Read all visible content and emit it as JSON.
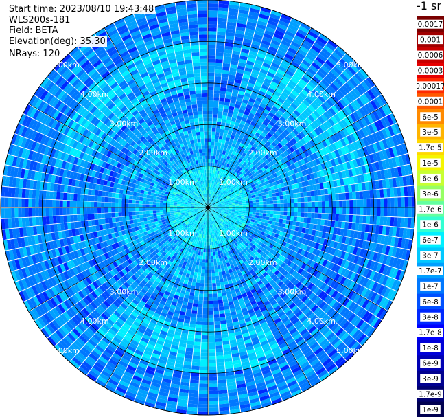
{
  "header": {
    "start_time": "Start time: 2023/08/10 19:43:48",
    "instrument": "WLS200s-181",
    "field": "Field: BETA",
    "elevation": "Elevation(deg): 35.30",
    "nrays": "NRays: 120"
  },
  "chart_data": {
    "type": "heatmap",
    "projection": "polar",
    "field": "BETA",
    "elevation_deg": 35.3,
    "n_rays": 120,
    "range_rings_km": [
      1.0,
      2.0,
      3.0,
      4.0,
      5.0
    ],
    "ring_labels": [
      "1.00km",
      "2.00km",
      "3.00km",
      "4.00km",
      "5.00km"
    ],
    "max_range_km": 5.0,
    "radial_spokes": 12,
    "colorbar": {
      "unit": "-1 sr",
      "levels_top_to_bottom": [
        "0.0017",
        "0.001",
        "0.0006",
        "0.0003",
        "0.00017",
        "0.0001",
        "6e-5",
        "3e-5",
        "1.7e-5",
        "1e-5",
        "6e-6",
        "3e-6",
        "1.7e-6",
        "1e-6",
        "6e-7",
        "3e-7",
        "1.7e-7",
        "1e-7",
        "6e-8",
        "3e-8",
        "1.7e-8",
        "1e-8",
        "6e-9",
        "3e-9",
        "1.7e-9",
        "1e-9"
      ],
      "colors_top_to_bottom": [
        "#7a0000",
        "#a00000",
        "#c80000",
        "#e60000",
        "#ff2a00",
        "#ff5a00",
        "#ff8a00",
        "#ffb400",
        "#ffd800",
        "#f5f500",
        "#c8ff32",
        "#96ff64",
        "#64ffa0",
        "#32ffd2",
        "#00f0ff",
        "#00c8ff",
        "#00a0ff",
        "#0078ff",
        "#0050ff",
        "#0028ff",
        "#0000ff",
        "#0000d8",
        "#0000b4",
        "#000090",
        "#000070",
        "#000050"
      ]
    },
    "typical_values": {
      "inner_range_0_to_1km": "3e-7",
      "mid_range_1_to_3km": "6e-8",
      "outer_range_3_to_5km": "3e-8"
    }
  }
}
